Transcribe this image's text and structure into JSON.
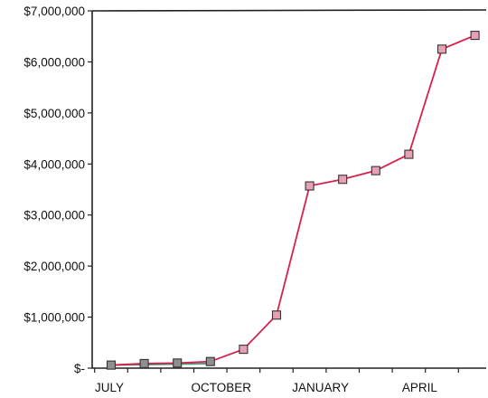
{
  "chart_data": {
    "type": "line",
    "y_ticks": [
      "$7,000,000",
      "$6,000,000",
      "$5,000,000",
      "$4,000,000",
      "$3,000,000",
      "$2,000,000",
      "$1,000,000",
      "$-"
    ],
    "y_tick_values": [
      7000000,
      6000000,
      5000000,
      4000000,
      3000000,
      2000000,
      1000000,
      0
    ],
    "ylim": [
      0,
      7000000
    ],
    "x_labels": [
      "JULY",
      "OCTOBER",
      "JANUARY",
      "APRIL"
    ],
    "x_label_positions": [
      0,
      3,
      6,
      9
    ],
    "x_count": 12,
    "grid": false,
    "series": [
      {
        "values": [
          60000,
          70000,
          80000,
          90000
        ],
        "color": "#3a9a7a"
      },
      {
        "values": [
          60000,
          90000,
          100000,
          130000,
          370000,
          1040000,
          3570000,
          3700000,
          3870000,
          4190000,
          6250000,
          6520000
        ],
        "color": "#d8204c",
        "marker_fill": "#e8a0b4",
        "marker_stroke": "#333333"
      }
    ]
  }
}
